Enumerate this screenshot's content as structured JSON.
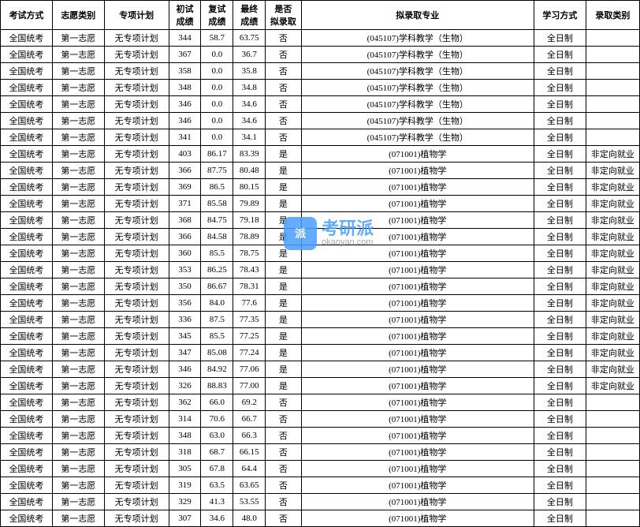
{
  "headers": {
    "exam": "考试方式",
    "wish": "志愿类别",
    "plan": "专项计划",
    "s1": "初试\n成绩",
    "s2": "复试\n成绩",
    "s3": "最终\n成绩",
    "admit": "是否\n拟录取",
    "major": "拟录取专业",
    "study": "学习方式",
    "type": "录取类别"
  },
  "common": {
    "exam": "全国统考",
    "wish": "第一志愿",
    "plan": "无专项计划",
    "study": "全日制",
    "major_bio": "(045107)学科教学（生物）",
    "major_botany": "(071001)植物学",
    "type_nd": "非定向就业"
  },
  "rows": [
    {
      "s1": "344",
      "s2": "58.7",
      "s3": "63.75",
      "admit": "否",
      "major": "bio",
      "type": ""
    },
    {
      "s1": "367",
      "s2": "0.0",
      "s3": "36.7",
      "admit": "否",
      "major": "bio",
      "type": ""
    },
    {
      "s1": "358",
      "s2": "0.0",
      "s3": "35.8",
      "admit": "否",
      "major": "bio",
      "type": ""
    },
    {
      "s1": "348",
      "s2": "0.0",
      "s3": "34.8",
      "admit": "否",
      "major": "bio",
      "type": ""
    },
    {
      "s1": "346",
      "s2": "0.0",
      "s3": "34.6",
      "admit": "否",
      "major": "bio",
      "type": ""
    },
    {
      "s1": "346",
      "s2": "0.0",
      "s3": "34.6",
      "admit": "否",
      "major": "bio",
      "type": ""
    },
    {
      "s1": "341",
      "s2": "0.0",
      "s3": "34.1",
      "admit": "否",
      "major": "bio",
      "type": ""
    },
    {
      "s1": "403",
      "s2": "86.17",
      "s3": "83.39",
      "admit": "是",
      "major": "botany",
      "type": "nd"
    },
    {
      "s1": "366",
      "s2": "87.75",
      "s3": "80.48",
      "admit": "是",
      "major": "botany",
      "type": "nd"
    },
    {
      "s1": "369",
      "s2": "86.5",
      "s3": "80.15",
      "admit": "是",
      "major": "botany",
      "type": "nd"
    },
    {
      "s1": "371",
      "s2": "85.58",
      "s3": "79.89",
      "admit": "是",
      "major": "botany",
      "type": "nd"
    },
    {
      "s1": "368",
      "s2": "84.75",
      "s3": "79.18",
      "admit": "是",
      "major": "botany",
      "type": "nd"
    },
    {
      "s1": "366",
      "s2": "84.58",
      "s3": "78.89",
      "admit": "是",
      "major": "botany",
      "type": "nd"
    },
    {
      "s1": "360",
      "s2": "85.5",
      "s3": "78.75",
      "admit": "是",
      "major": "botany",
      "type": "nd"
    },
    {
      "s1": "353",
      "s2": "86.25",
      "s3": "78.43",
      "admit": "是",
      "major": "botany",
      "type": "nd"
    },
    {
      "s1": "350",
      "s2": "86.67",
      "s3": "78.31",
      "admit": "是",
      "major": "botany",
      "type": "nd"
    },
    {
      "s1": "356",
      "s2": "84.0",
      "s3": "77.6",
      "admit": "是",
      "major": "botany",
      "type": "nd"
    },
    {
      "s1": "336",
      "s2": "87.5",
      "s3": "77.35",
      "admit": "是",
      "major": "botany",
      "type": "nd"
    },
    {
      "s1": "345",
      "s2": "85.5",
      "s3": "77.25",
      "admit": "是",
      "major": "botany",
      "type": "nd"
    },
    {
      "s1": "347",
      "s2": "85.08",
      "s3": "77.24",
      "admit": "是",
      "major": "botany",
      "type": "nd"
    },
    {
      "s1": "346",
      "s2": "84.92",
      "s3": "77.06",
      "admit": "是",
      "major": "botany",
      "type": "nd"
    },
    {
      "s1": "326",
      "s2": "88.83",
      "s3": "77.00",
      "admit": "是",
      "major": "botany",
      "type": "nd"
    },
    {
      "s1": "362",
      "s2": "66.0",
      "s3": "69.2",
      "admit": "否",
      "major": "botany",
      "type": ""
    },
    {
      "s1": "314",
      "s2": "70.6",
      "s3": "66.7",
      "admit": "否",
      "major": "botany",
      "type": ""
    },
    {
      "s1": "348",
      "s2": "63.0",
      "s3": "66.3",
      "admit": "否",
      "major": "botany",
      "type": ""
    },
    {
      "s1": "318",
      "s2": "68.7",
      "s3": "66.15",
      "admit": "否",
      "major": "botany",
      "type": ""
    },
    {
      "s1": "305",
      "s2": "67.8",
      "s3": "64.4",
      "admit": "否",
      "major": "botany",
      "type": ""
    },
    {
      "s1": "319",
      "s2": "63.5",
      "s3": "63.65",
      "admit": "否",
      "major": "botany",
      "type": ""
    },
    {
      "s1": "329",
      "s2": "41.3",
      "s3": "53.55",
      "admit": "否",
      "major": "botany",
      "type": ""
    },
    {
      "s1": "307",
      "s2": "34.6",
      "s3": "48.0",
      "admit": "否",
      "major": "botany",
      "type": ""
    }
  ],
  "watermark": {
    "badge": "派",
    "main": "考研派",
    "sub": "okaoyan.com"
  },
  "colors": {
    "border": "#000000",
    "bg": "#ffffff",
    "wm_blue": "#4a9eff",
    "wm_gray": "#999999"
  }
}
